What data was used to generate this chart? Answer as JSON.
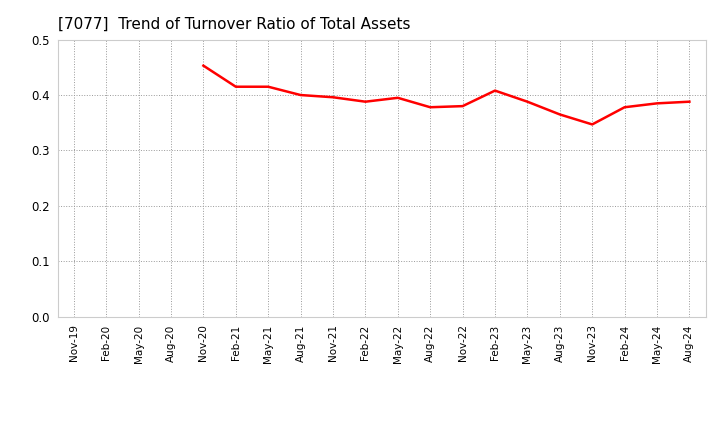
{
  "title": "[7077]  Trend of Turnover Ratio of Total Assets",
  "title_fontsize": 11,
  "line_color": "#ff0000",
  "line_width": 1.8,
  "background_color": "#ffffff",
  "grid_color": "#999999",
  "ylim": [
    0.0,
    0.5
  ],
  "yticks": [
    0.0,
    0.1,
    0.2,
    0.3,
    0.4,
    0.5
  ],
  "x_labels": [
    "Nov-19",
    "Feb-20",
    "May-20",
    "Aug-20",
    "Nov-20",
    "Feb-21",
    "May-21",
    "Aug-21",
    "Nov-21",
    "Feb-22",
    "May-22",
    "Aug-22",
    "Nov-22",
    "Feb-23",
    "May-23",
    "Aug-23",
    "Nov-23",
    "Feb-24",
    "May-24",
    "Aug-24"
  ],
  "values": [
    null,
    null,
    null,
    null,
    0.453,
    0.415,
    0.415,
    0.4,
    0.396,
    0.388,
    0.395,
    0.378,
    0.38,
    0.408,
    0.388,
    0.365,
    0.347,
    0.378,
    0.385,
    0.388
  ]
}
